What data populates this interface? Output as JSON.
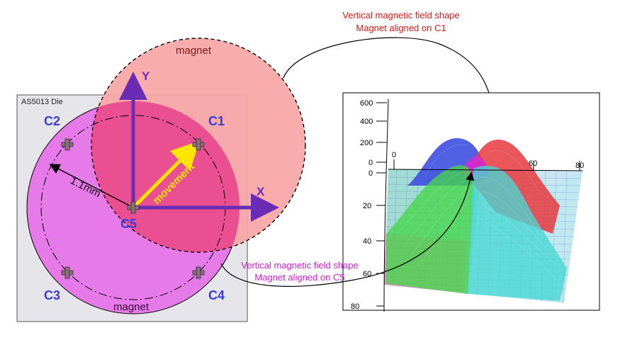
{
  "die": {
    "label": "AS5013 Die"
  },
  "magnets": {
    "upper_label": "magnet",
    "lower_label": "magnet"
  },
  "axes": {
    "x": "X",
    "y": "Y"
  },
  "contacts": {
    "c1": "C1",
    "c2": "C2",
    "c3": "C3",
    "c4": "C4",
    "c5": "C5"
  },
  "radius_label": "1.1mm",
  "movement_label": "movement",
  "annotations": {
    "top_line1": "Vertical magnetic field shape",
    "top_line2": "Magnet aligned on C1",
    "bottom_line1": "Vertical magnetic field shape",
    "bottom_line2": "Magnet aligned on C5"
  },
  "plot": {
    "z_ticks": [
      "600",
      "400",
      "200",
      "0"
    ],
    "x_ticks": [
      "0",
      "60",
      "80"
    ],
    "y_ticks": [
      "0",
      "20",
      "40",
      "60",
      "80"
    ]
  },
  "colors": {
    "magnet_upper": "#f7a5a5",
    "magnet_lower": "#e57ae8",
    "overlap": "#ea4f92",
    "axis": "#6a2bb5",
    "movement": "#ffe600",
    "label_blue": "#3b3bd6",
    "annotation_red": "#e01515",
    "annotation_magenta": "#d11ad1"
  }
}
